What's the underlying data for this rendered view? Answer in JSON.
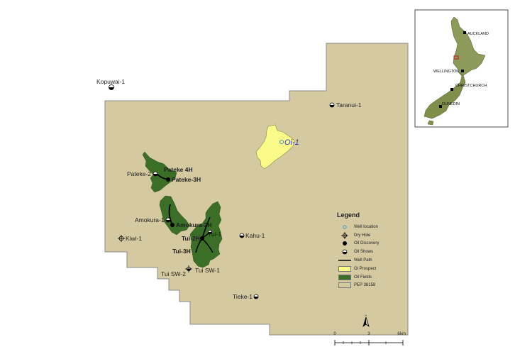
{
  "map": {
    "permit_fill": "#d4c9a1",
    "oil_field_fill": "#3b6e26",
    "prospect_fill": "#fbfb8a",
    "page_background": "#ffffff"
  },
  "wells": {
    "kopuwai": "Kopuwai-1",
    "taranui": "Taranui-1",
    "oi": "Oi-1",
    "pateke_4h": "Pateke 4H",
    "pateke_2": "Pateke-2",
    "pateke_3h": "Pateke-3H",
    "amokura_1": "Amokura-1",
    "amokura_2h": "Amokura-2H",
    "kiwi": "Kiwi-1",
    "tui_1": "Tui-1",
    "tui_2h": "Tui-2H",
    "tui_3h": "Tui-3H",
    "kahu": "Kahu-1",
    "tui_sw_2": "Tui SW-2",
    "tui_sw_1": "Tui SW-1",
    "tieke": "Tieke-1"
  },
  "inset": {
    "auckland": "AUCKLAND",
    "wellington": "WELLINGTON",
    "christchurch": "CHRISTCHURCH",
    "dunedin": "DUNEDIN"
  },
  "legend": {
    "title": "Legend",
    "items": [
      {
        "label": "Well location"
      },
      {
        "label": "Dry Hole"
      },
      {
        "label": "Oil Discovery"
      },
      {
        "label": "Oil Shows"
      },
      {
        "label": "Well Path"
      },
      {
        "label": "Oi Prospect",
        "color": "#fbfb8a"
      },
      {
        "label": "Oil Fields",
        "color": "#3b6e26"
      },
      {
        "label": "PEP 38158",
        "color": "#d4c9a1"
      }
    ]
  },
  "scale": {
    "north": "N",
    "ticks": [
      "0",
      "3",
      "6"
    ],
    "unit": "km"
  }
}
